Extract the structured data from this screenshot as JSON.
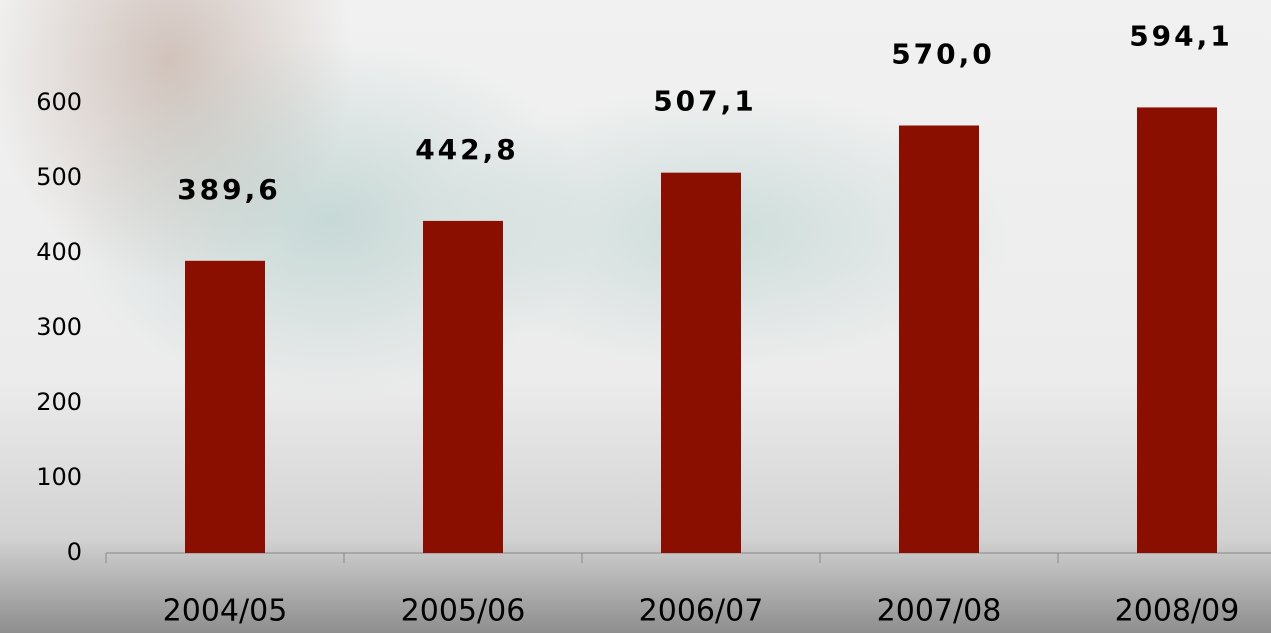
{
  "chart_data": {
    "type": "bar",
    "categories": [
      "2004/05",
      "2005/06",
      "2006/07",
      "2007/08",
      "2008/09"
    ],
    "values": [
      389.6,
      442.8,
      507.1,
      570.0,
      594.1
    ],
    "value_labels": [
      "389,6",
      "442,8",
      "507,1",
      "570,0",
      "594,1"
    ],
    "color": "#8b0f00",
    "ylim": [
      0,
      600
    ],
    "yticks": [
      0,
      100,
      200,
      300,
      400,
      500,
      600
    ]
  }
}
